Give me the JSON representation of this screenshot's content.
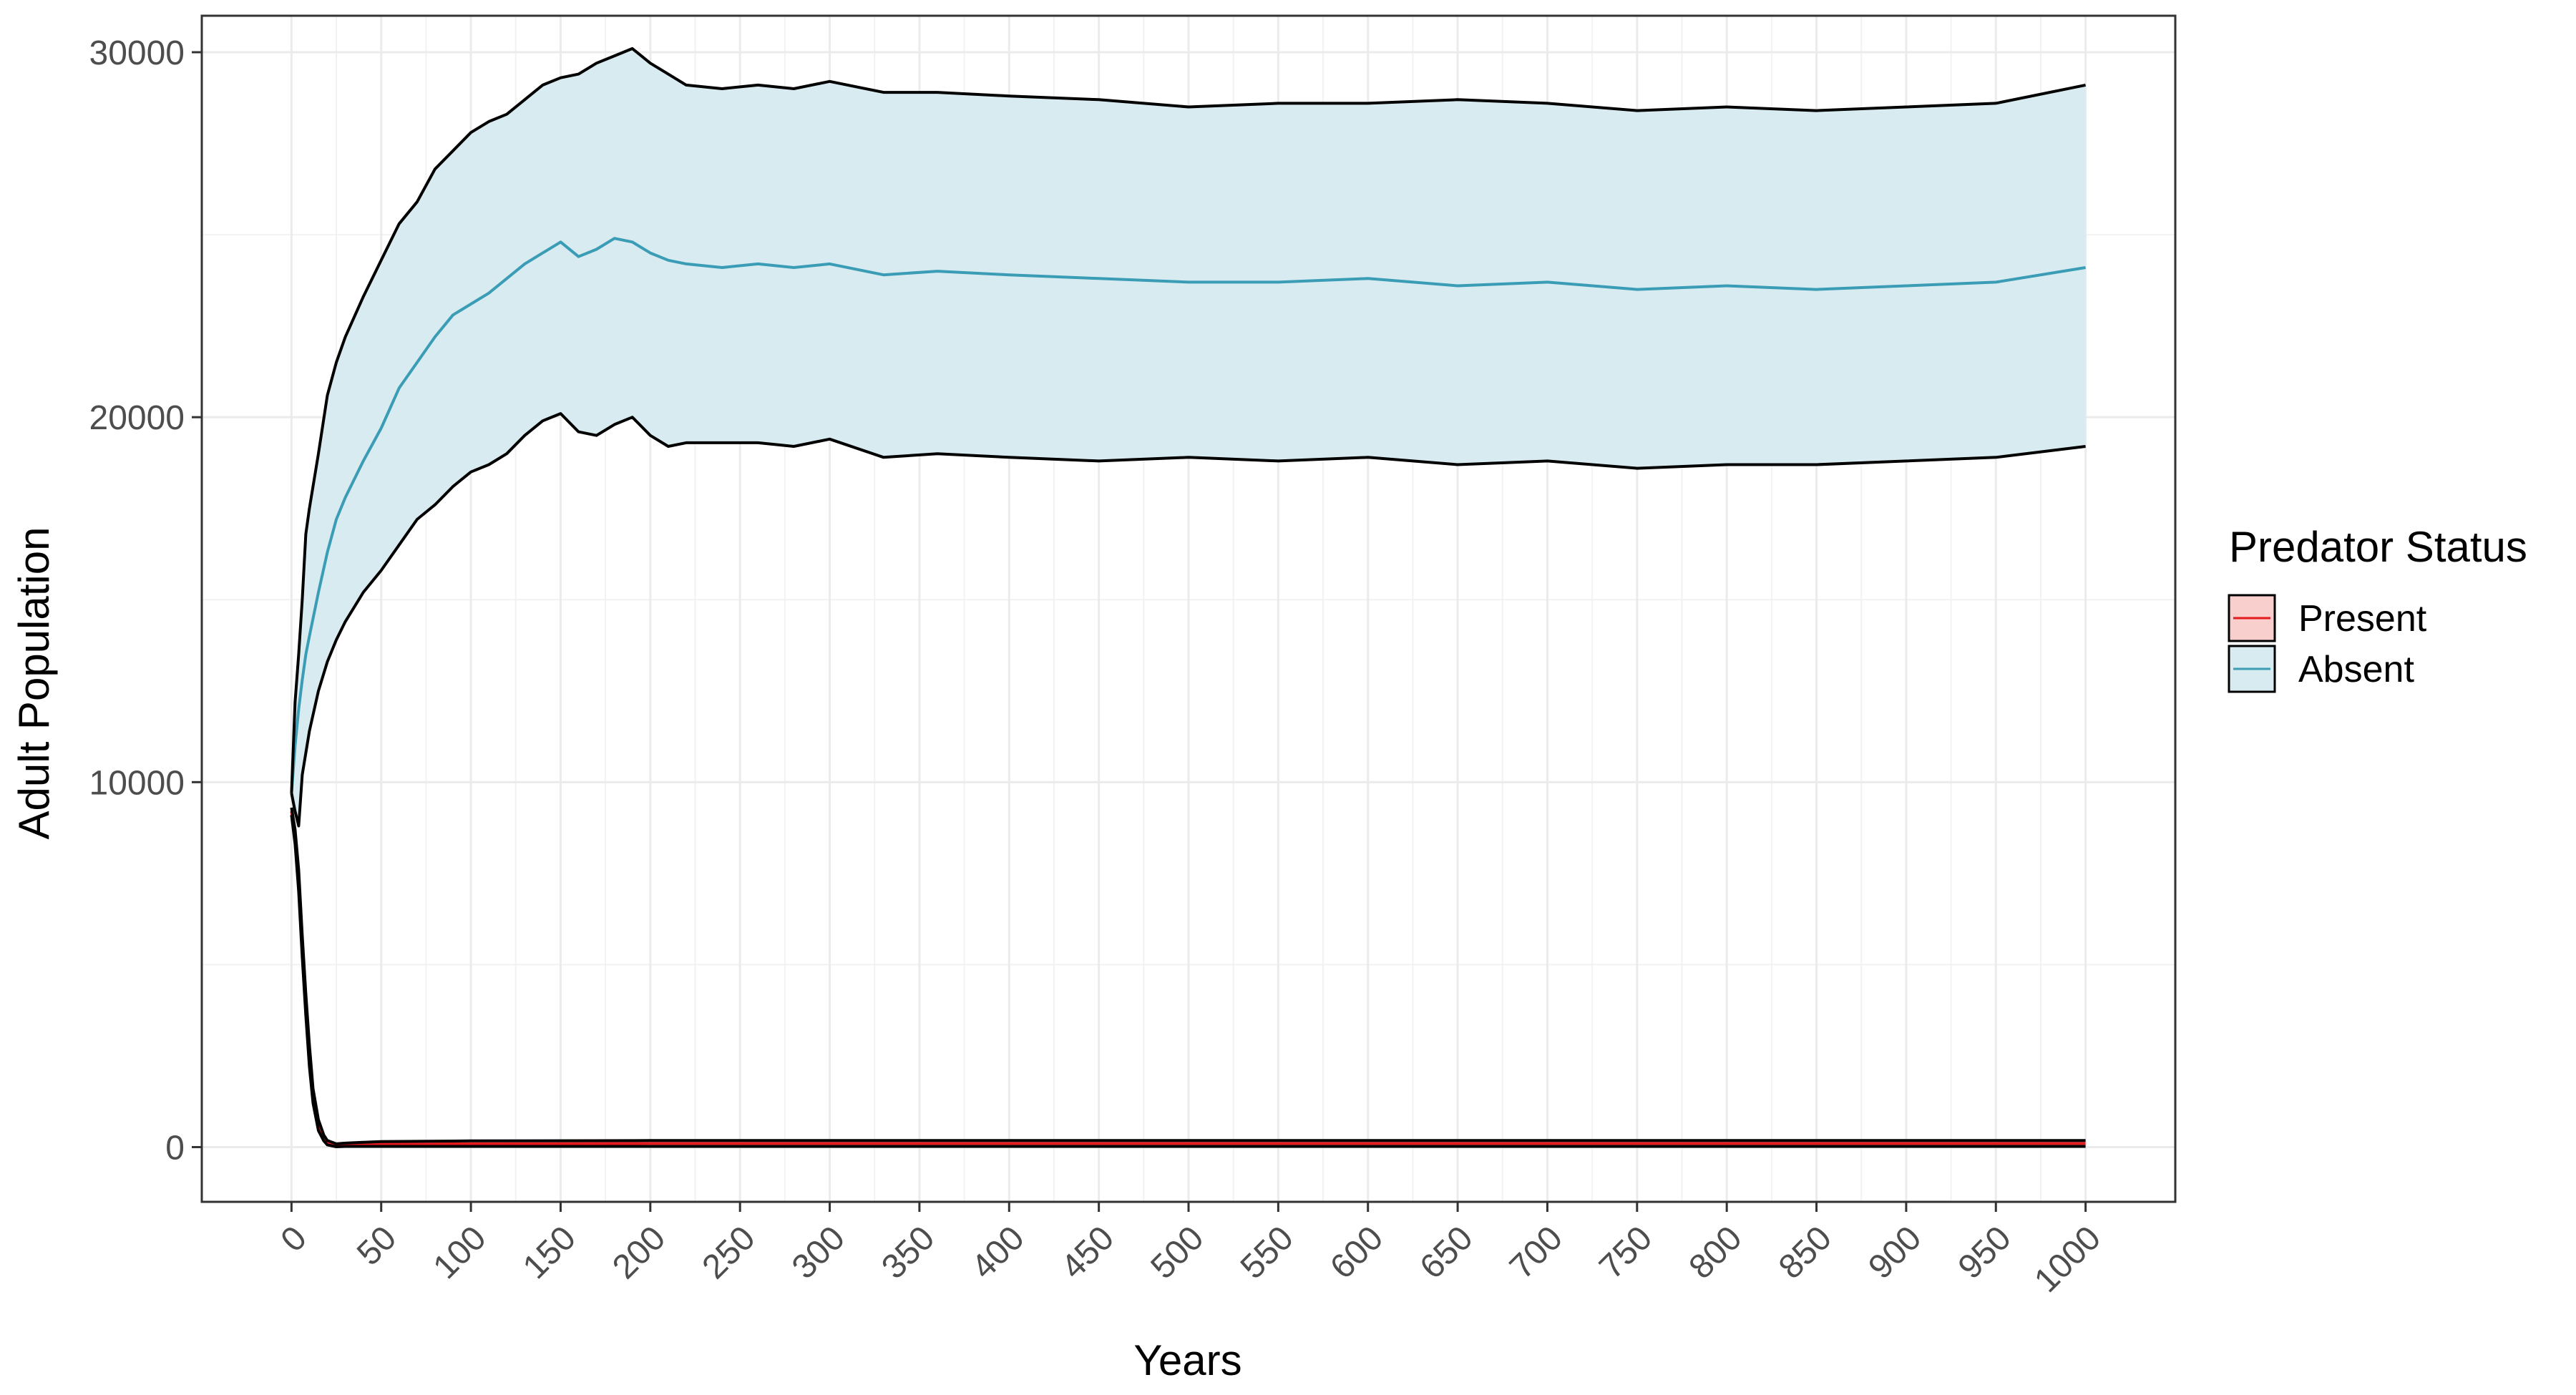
{
  "chart_data": {
    "type": "line",
    "title": "",
    "xlabel": "Years",
    "ylabel": "Adult Population",
    "xlim": [
      -50,
      1050
    ],
    "ylim": [
      -1500,
      31000
    ],
    "x_ticks": [
      0,
      50,
      100,
      150,
      200,
      250,
      300,
      350,
      400,
      450,
      500,
      550,
      600,
      650,
      700,
      750,
      800,
      850,
      900,
      950,
      1000
    ],
    "x_tick_labels": [
      "0",
      "50",
      "100",
      "150",
      "200",
      "250",
      "300",
      "350",
      "400",
      "450",
      "500",
      "550",
      "600",
      "650",
      "700",
      "750",
      "800",
      "850",
      "900",
      "950",
      "1000"
    ],
    "y_ticks": [
      0,
      10000,
      20000,
      30000
    ],
    "y_tick_labels": [
      "0",
      "10000",
      "20000",
      "30000"
    ],
    "grid": true,
    "legend": {
      "title": "Predator Status",
      "placement": "right",
      "items": [
        {
          "label": "Present",
          "line_color": "#e41a1c",
          "fill_color": "#f8cfcd"
        },
        {
          "label": "Absent",
          "line_color": "#3a9cb5",
          "fill_color": "#d7ebf0"
        }
      ]
    },
    "series": [
      {
        "name": "Absent",
        "color": "#3a9cb5",
        "band_fill": "#d7ebf0",
        "band_stroke": "#000000",
        "x": [
          0,
          2,
          4,
          6,
          8,
          10,
          15,
          20,
          25,
          30,
          40,
          50,
          60,
          70,
          80,
          90,
          100,
          110,
          120,
          130,
          140,
          150,
          160,
          170,
          180,
          190,
          200,
          210,
          220,
          240,
          260,
          280,
          300,
          330,
          360,
          400,
          450,
          500,
          550,
          600,
          650,
          700,
          750,
          800,
          850,
          900,
          950,
          1000
        ],
        "mean": [
          9700,
          11000,
          12000,
          12800,
          13500,
          14000,
          15200,
          16300,
          17200,
          17800,
          18800,
          19700,
          20800,
          21500,
          22200,
          22800,
          23100,
          23400,
          23800,
          24200,
          24500,
          24800,
          24400,
          24600,
          24900,
          24800,
          24500,
          24300,
          24200,
          24100,
          24200,
          24100,
          24200,
          23900,
          24000,
          23900,
          23800,
          23700,
          23700,
          23800,
          23600,
          23700,
          23500,
          23600,
          23500,
          23600,
          23700,
          24100
        ],
        "upper": [
          9700,
          12200,
          13500,
          15000,
          16800,
          17500,
          19000,
          20600,
          21500,
          22200,
          23300,
          24300,
          25300,
          25900,
          26800,
          27300,
          27800,
          28100,
          28300,
          28700,
          29100,
          29300,
          29400,
          29700,
          29900,
          30100,
          29700,
          29400,
          29100,
          29000,
          29100,
          29000,
          29200,
          28900,
          28900,
          28800,
          28700,
          28500,
          28600,
          28600,
          28700,
          28600,
          28400,
          28500,
          28400,
          28500,
          28600,
          29100
        ],
        "lower": [
          9700,
          9200,
          8800,
          10200,
          10800,
          11400,
          12500,
          13300,
          13900,
          14400,
          15200,
          15800,
          16500,
          17200,
          17600,
          18100,
          18500,
          18700,
          19000,
          19500,
          19900,
          20100,
          19600,
          19500,
          19800,
          20000,
          19500,
          19200,
          19300,
          19300,
          19300,
          19200,
          19400,
          18900,
          19000,
          18900,
          18800,
          18900,
          18800,
          18900,
          18700,
          18800,
          18600,
          18700,
          18700,
          18800,
          18900,
          19200
        ]
      },
      {
        "name": "Present",
        "color": "#e41a1c",
        "band_fill": "#f8cfcd",
        "band_stroke": "#000000",
        "x": [
          0,
          2,
          4,
          6,
          8,
          10,
          12,
          15,
          18,
          20,
          25,
          30,
          40,
          50,
          100,
          200,
          300,
          400,
          500,
          600,
          700,
          800,
          900,
          1000
        ],
        "mean": [
          9200,
          8500,
          7300,
          5500,
          3900,
          2500,
          1400,
          600,
          250,
          120,
          50,
          60,
          70,
          80,
          90,
          100,
          100,
          100,
          100,
          100,
          100,
          100,
          100,
          100
        ],
        "upper": [
          9300,
          8700,
          7600,
          5800,
          4200,
          2800,
          1600,
          750,
          330,
          180,
          90,
          110,
          130,
          150,
          170,
          180,
          180,
          180,
          180,
          180,
          180,
          180,
          180,
          180
        ],
        "lower": [
          9100,
          8300,
          7000,
          5200,
          3600,
          2200,
          1200,
          450,
          170,
          60,
          10,
          20,
          20,
          20,
          20,
          20,
          20,
          20,
          20,
          20,
          20,
          20,
          20,
          20
        ]
      }
    ]
  }
}
